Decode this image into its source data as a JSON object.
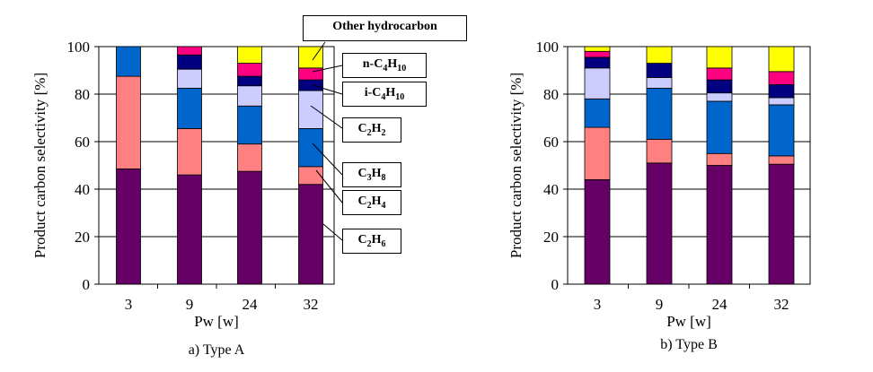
{
  "colors": {
    "C2H6": "#660066",
    "C2H4": "#ff8080",
    "C3H8": "#0066cc",
    "C2H2": "#ccccff",
    "i-C4H10": "#000080",
    "n-C4H10": "#ff0080",
    "Other hydrocarbon": "#ffff00"
  },
  "legend_callouts": {
    "other": "Other hydrocarbon",
    "nC4H10": {
      "pre": "n-C",
      "n1": "4",
      "mid": "H",
      "n2": "10"
    },
    "iC4H10": {
      "pre": "i-C",
      "n1": "4",
      "mid": "H",
      "n2": "10"
    },
    "C2H2": {
      "pre": "C",
      "n1": "2",
      "mid": "H",
      "n2": "2"
    },
    "C3H8": {
      "pre": "C",
      "n1": "3",
      "mid": "H",
      "n2": "8"
    },
    "C2H4": {
      "pre": "C",
      "n1": "2",
      "mid": "H",
      "n2": "4"
    },
    "C2H6": {
      "pre": "C",
      "n1": "2",
      "mid": "H",
      "n2": "6"
    }
  },
  "chart_data": [
    {
      "type": "bar",
      "stacked": true,
      "caption": "a) Type A",
      "xlabel": "Pw [w]",
      "ylabel": "Product carbon selectivity [%]",
      "ylim": [
        0,
        100
      ],
      "yticks": [
        "0",
        "20",
        "40",
        "60",
        "80",
        "100"
      ],
      "grid": true,
      "categories": [
        "3",
        "9",
        "24",
        "32"
      ],
      "series": [
        {
          "name": "C2H6",
          "values": [
            48.5,
            46,
            47.5,
            42
          ]
        },
        {
          "name": "C2H4",
          "values": [
            39,
            19.5,
            11.5,
            7.5
          ]
        },
        {
          "name": "C3H8",
          "values": [
            12.5,
            17,
            16,
            16
          ]
        },
        {
          "name": "C2H2",
          "values": [
            0,
            8,
            8.5,
            16
          ]
        },
        {
          "name": "i-C4H10",
          "values": [
            0,
            6,
            4,
            4.5
          ]
        },
        {
          "name": "n-C4H10",
          "values": [
            0,
            3.5,
            5.5,
            5
          ]
        },
        {
          "name": "Other hydrocarbon",
          "values": [
            0,
            0,
            7,
            9
          ]
        }
      ]
    },
    {
      "type": "bar",
      "stacked": true,
      "caption": "b) Type B",
      "xlabel": "Pw [w]",
      "ylabel": "Product carbon selectivity [%]",
      "ylim": [
        0,
        100
      ],
      "yticks": [
        "0",
        "20",
        "40",
        "60",
        "80",
        "100"
      ],
      "grid": true,
      "categories": [
        "3",
        "9",
        "24",
        "32"
      ],
      "series": [
        {
          "name": "C2H6",
          "values": [
            44,
            51,
            50,
            50.5
          ]
        },
        {
          "name": "C2H4",
          "values": [
            22,
            10,
            5,
            3.5
          ]
        },
        {
          "name": "C3H8",
          "values": [
            12,
            21.5,
            22,
            21.5
          ]
        },
        {
          "name": "C2H2",
          "values": [
            13,
            4.5,
            3.5,
            3
          ]
        },
        {
          "name": "i-C4H10",
          "values": [
            4.5,
            6,
            5.5,
            5.5
          ]
        },
        {
          "name": "n-C4H10",
          "values": [
            2.5,
            0,
            5,
            5.5
          ]
        },
        {
          "name": "Other hydrocarbon",
          "values": [
            2,
            7,
            9,
            10.5
          ]
        }
      ]
    }
  ]
}
